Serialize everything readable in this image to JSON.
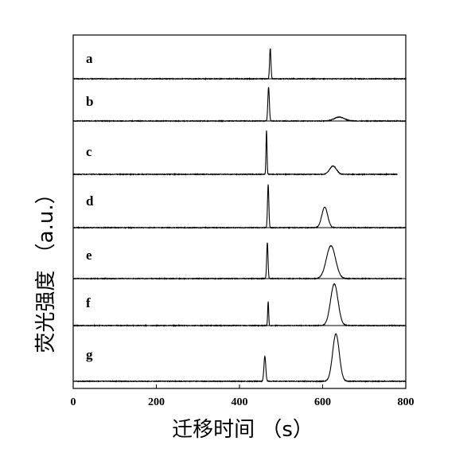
{
  "chart_data": {
    "type": "line",
    "title": "",
    "xlabel": "迁移时间 （s）",
    "ylabel": "荧光强度 （a.u.）",
    "xlim": [
      0,
      800
    ],
    "xticks": [
      0,
      200,
      400,
      600,
      800
    ],
    "yticks": false,
    "grid": false,
    "legend": "none",
    "colors": {
      "line": "#000000",
      "axis": "#000000",
      "background": "#ffffff"
    },
    "panels": [
      {
        "label": "a",
        "x_end": 800,
        "peaks": [
          {
            "x": 474,
            "h": 0.8,
            "w": 1.6
          }
        ]
      },
      {
        "label": "b",
        "x_end": 800,
        "peaks": [
          {
            "x": 470,
            "h": 0.85,
            "w": 1.8
          },
          {
            "x": 640,
            "h": 0.1,
            "w": 12
          }
        ]
      },
      {
        "label": "c",
        "x_end": 780,
        "peaks": [
          {
            "x": 465,
            "h": 0.95,
            "w": 1.2
          },
          {
            "x": 625,
            "h": 0.18,
            "w": 8
          }
        ]
      },
      {
        "label": "d",
        "x_end": 800,
        "peaks": [
          {
            "x": 469,
            "h": 0.9,
            "w": 1.6
          },
          {
            "x": 605,
            "h": 0.43,
            "w": 7
          }
        ]
      },
      {
        "label": "e",
        "x_end": 790,
        "peaks": [
          {
            "x": 467,
            "h": 0.82,
            "w": 1.6
          },
          {
            "x": 620,
            "h": 0.75,
            "w": 11
          }
        ]
      },
      {
        "label": "f",
        "x_end": 800,
        "peaks": [
          {
            "x": 469,
            "h": 0.55,
            "w": 1.2
          },
          {
            "x": 628,
            "h": 0.95,
            "w": 9
          }
        ]
      },
      {
        "label": "g",
        "x_end": 800,
        "peaks": [
          {
            "x": 461,
            "h": 0.45,
            "w": 2.2
          },
          {
            "x": 632,
            "h": 0.85,
            "w": 8
          }
        ]
      }
    ]
  }
}
